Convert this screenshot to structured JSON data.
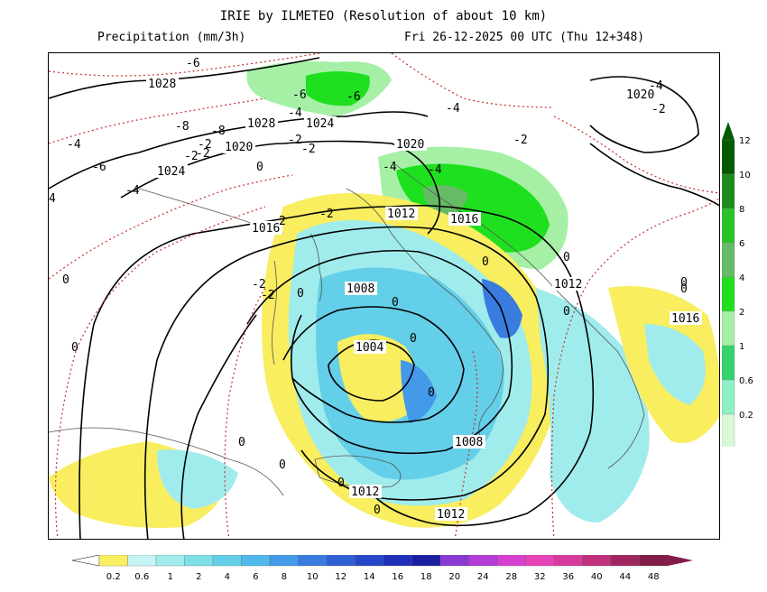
{
  "header": {
    "title": "IRIE by ILMETEO (Resolution of about 10 km)",
    "subtitle_left": "Precipitation (mm/3h)",
    "subtitle_right": "Fri 26-12-2025 00 UTC (Thu 12+348)"
  },
  "isobar_labels": [
    {
      "text": "1028"
    },
    {
      "text": "1028"
    },
    {
      "text": "1024"
    },
    {
      "text": "1024"
    },
    {
      "text": "1020"
    },
    {
      "text": "1020"
    },
    {
      "text": "1020"
    },
    {
      "text": "1016"
    },
    {
      "text": "1016"
    },
    {
      "text": "1016"
    },
    {
      "text": "1012"
    },
    {
      "text": "1012"
    },
    {
      "text": "1012"
    },
    {
      "text": "1012"
    },
    {
      "text": "1008"
    },
    {
      "text": "1008"
    },
    {
      "text": "1004"
    }
  ],
  "temperature_labels": [
    {
      "text": "-6"
    },
    {
      "text": "-6"
    },
    {
      "text": "-6"
    },
    {
      "text": "-6"
    },
    {
      "text": "-4"
    },
    {
      "text": "-4"
    },
    {
      "text": "-4"
    },
    {
      "text": "-4"
    },
    {
      "text": "-4"
    },
    {
      "text": "-4"
    },
    {
      "text": "-4"
    },
    {
      "text": "-2"
    },
    {
      "text": "-2"
    },
    {
      "text": "-2"
    },
    {
      "text": "-2"
    },
    {
      "text": "-2"
    },
    {
      "text": "-2"
    },
    {
      "text": "-2"
    },
    {
      "text": "-2"
    },
    {
      "text": "-2"
    },
    {
      "text": "-2"
    },
    {
      "text": "0"
    },
    {
      "text": "0"
    },
    {
      "text": "0"
    },
    {
      "text": "0"
    },
    {
      "text": "0"
    },
    {
      "text": "0"
    },
    {
      "text": "0"
    },
    {
      "text": "0"
    },
    {
      "text": "0"
    },
    {
      "text": "0"
    },
    {
      "text": "0"
    },
    {
      "text": "0"
    },
    {
      "text": "0"
    },
    {
      "text": "0"
    },
    {
      "text": "0"
    },
    {
      "text": "0"
    },
    {
      "text": "4"
    },
    {
      "text": "-8"
    },
    {
      "text": "-8"
    },
    {
      "text": "2"
    }
  ],
  "snow_scale": {
    "labels": [
      "12",
      "10",
      "8",
      "6",
      "4",
      "2",
      "1",
      "0.6",
      "0.2"
    ],
    "colors": [
      "#005a00",
      "#1c8c1c",
      "#27c327",
      "#66bb66",
      "#1fe01f",
      "#a6f0a6",
      "#33d36d",
      "#8ef0c4",
      "#d8f8d8"
    ]
  },
  "rain_scale": {
    "labels": [
      "0.2",
      "0.6",
      "1",
      "2",
      "4",
      "6",
      "8",
      "10",
      "12",
      "14",
      "16",
      "18",
      "20",
      "24",
      "28",
      "32",
      "36",
      "40",
      "44",
      "48"
    ],
    "colors": [
      "#f8ee60",
      "#c6f4f4",
      "#a0ecec",
      "#7ee0e6",
      "#64cfe8",
      "#50b8ea",
      "#4499e8",
      "#3a7be0",
      "#3060d6",
      "#2747c8",
      "#1e2fb8",
      "#1a1fa0",
      "#8a3ad2",
      "#b23ed6",
      "#d640d0",
      "#e644b8",
      "#d83a9c",
      "#c0307c",
      "#a02660",
      "#841c48"
    ]
  }
}
